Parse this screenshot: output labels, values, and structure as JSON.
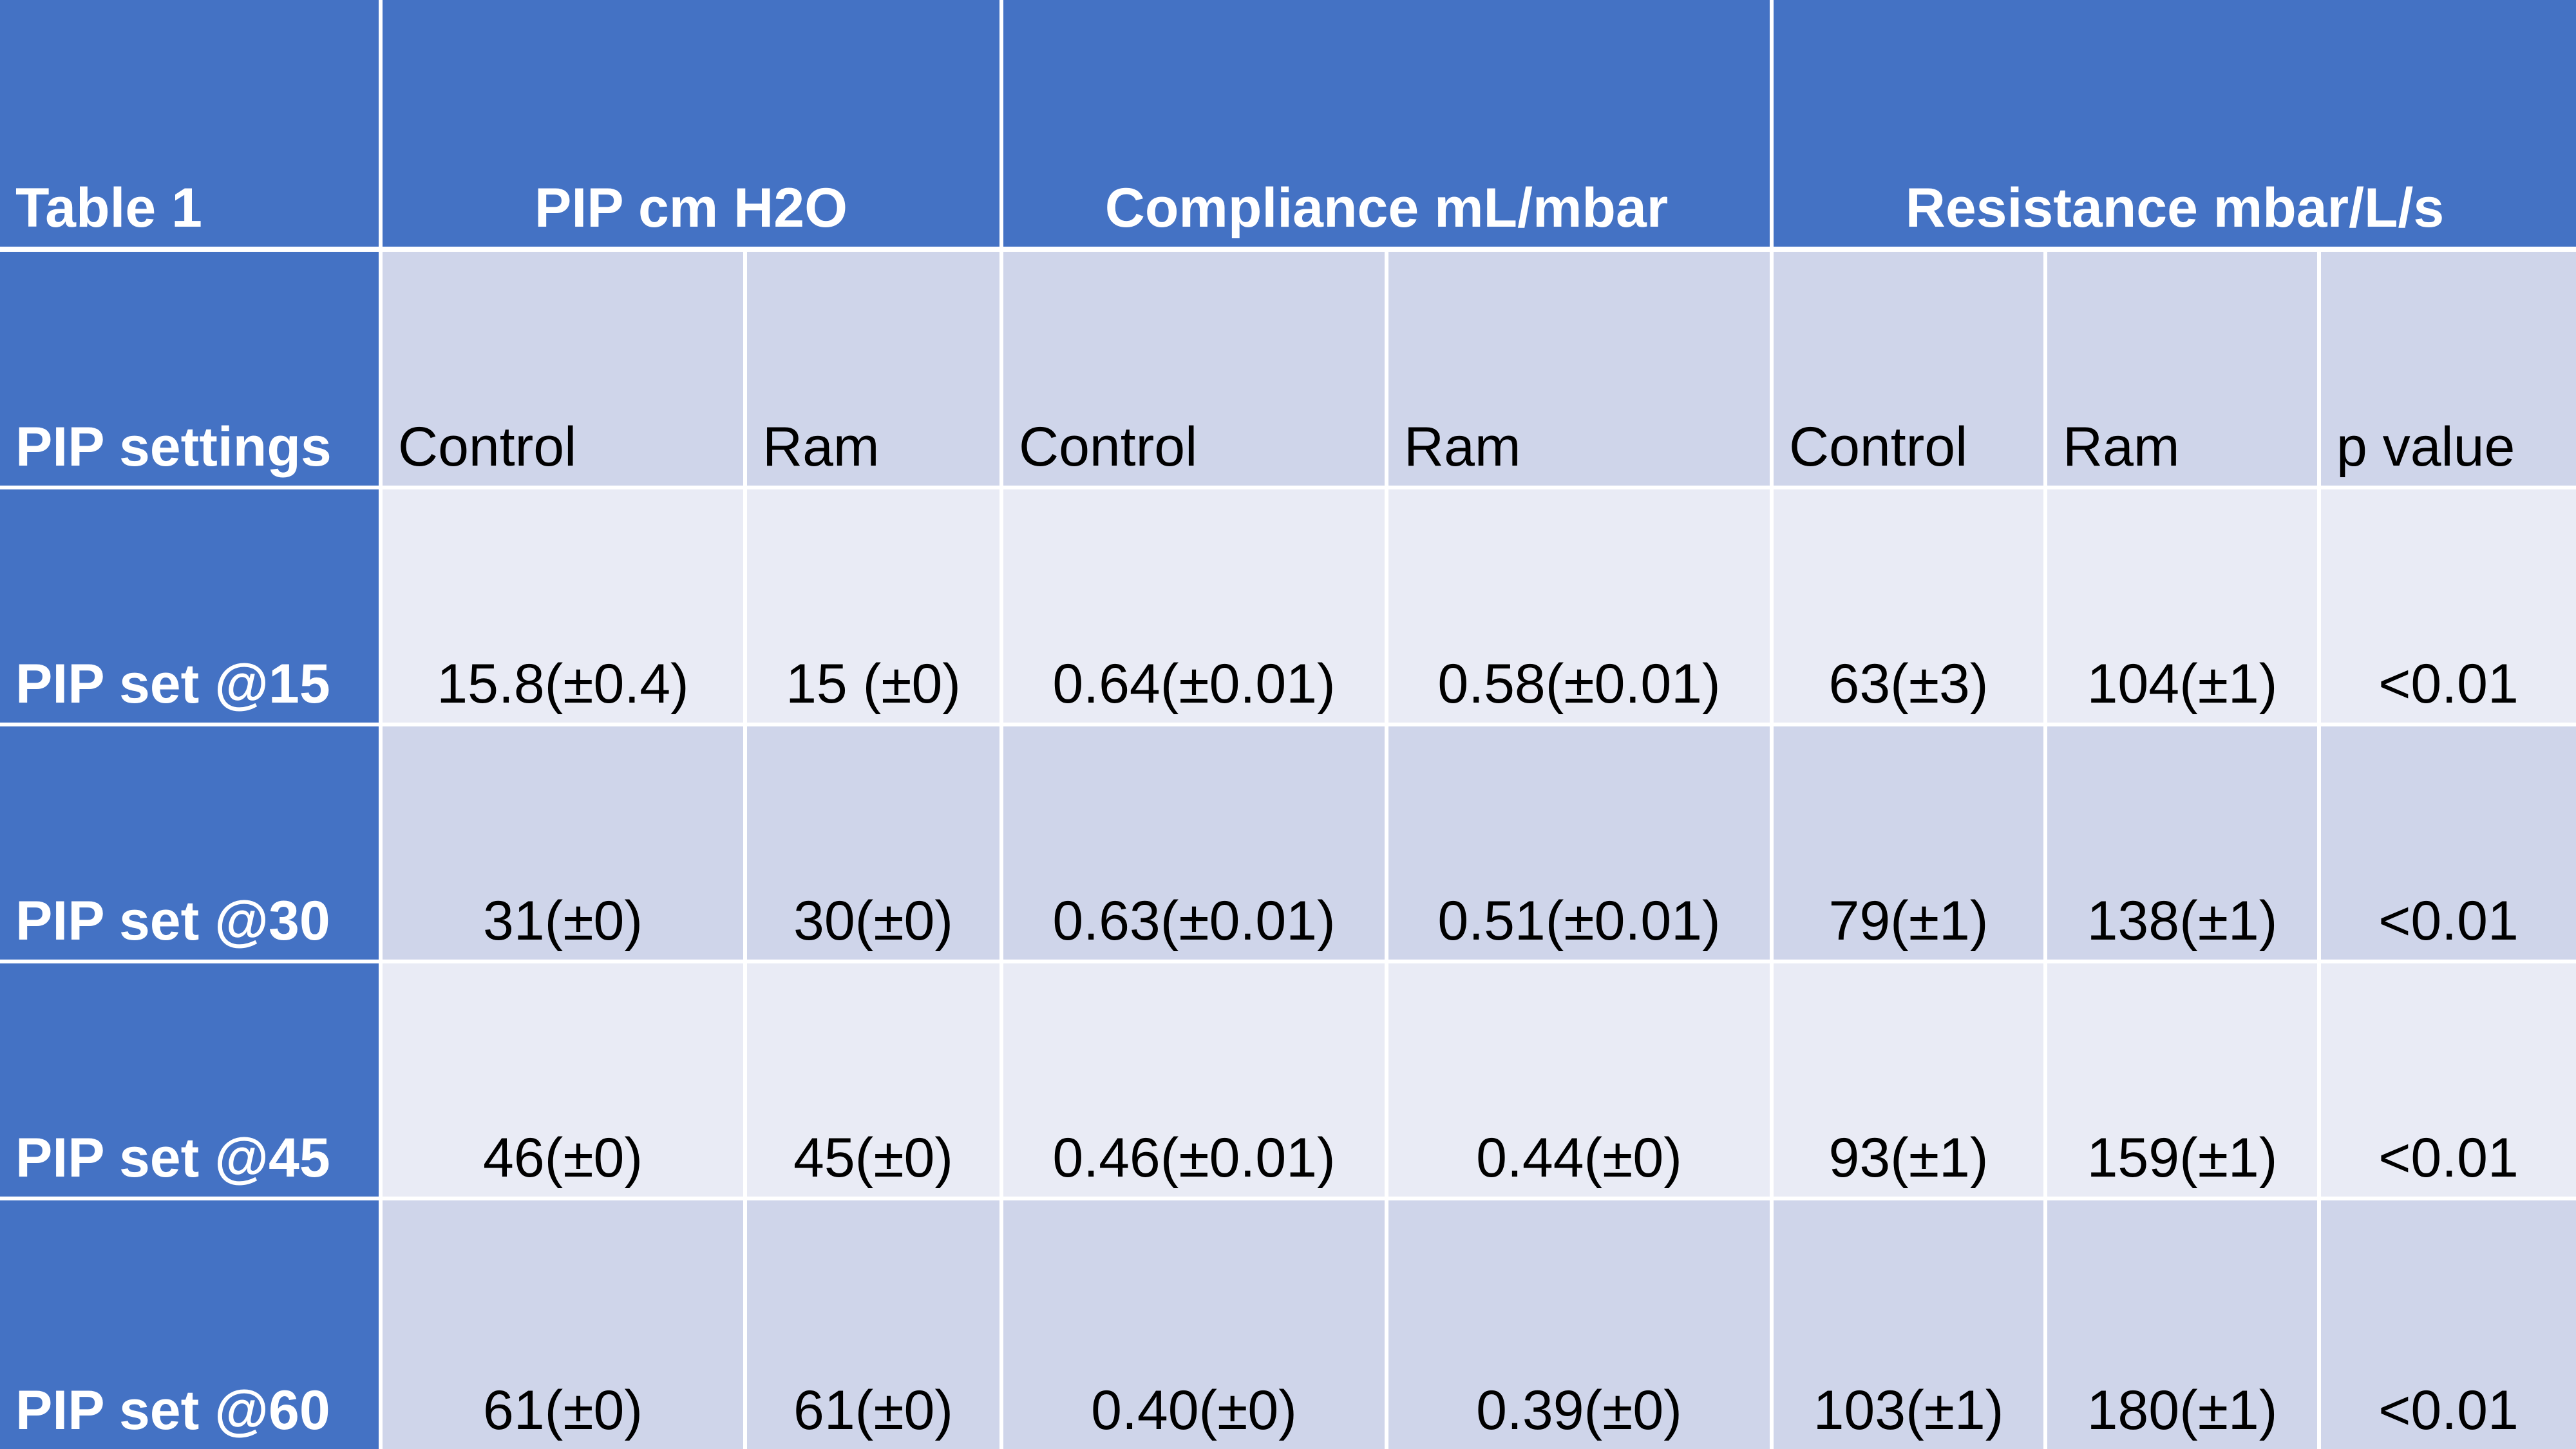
{
  "table": {
    "title": "Table 1",
    "groups": [
      "PIP cm H2O",
      "Compliance mL/mbar",
      "Resistance mbar/L/s"
    ],
    "row_header": "PIP settings",
    "subheaders": [
      "Control",
      "Ram",
      "Control",
      "Ram",
      "Control",
      "Ram",
      "p value"
    ],
    "rows": [
      {
        "label": "PIP set @15",
        "values": [
          "15.8(±0.4)",
          "15 (±0)",
          "0.64(±0.01)",
          "0.58(±0.01)",
          "63(±3)",
          "104(±1)",
          "<0.01"
        ]
      },
      {
        "label": "PIP set @30",
        "values": [
          "31(±0)",
          "30(±0)",
          "0.63(±0.01)",
          "0.51(±0.01)",
          "79(±1)",
          "138(±1)",
          "<0.01"
        ]
      },
      {
        "label": "PIP set @45",
        "values": [
          "46(±0)",
          "45(±0)",
          "0.46(±0.01)",
          "0.44(±0)",
          "93(±1)",
          "159(±1)",
          "<0.01"
        ]
      },
      {
        "label": "PIP set @60",
        "values": [
          "61(±0)",
          "61(±0)",
          "0.40(±0)",
          "0.39(±0)",
          "103(±1)",
          "180(±1)",
          "<0.01"
        ]
      }
    ],
    "colors": {
      "header_blue": "#4472c4",
      "band_dark": "#cfd5ea",
      "band_light": "#e9ebf5",
      "gridline": "#ffffff"
    }
  }
}
